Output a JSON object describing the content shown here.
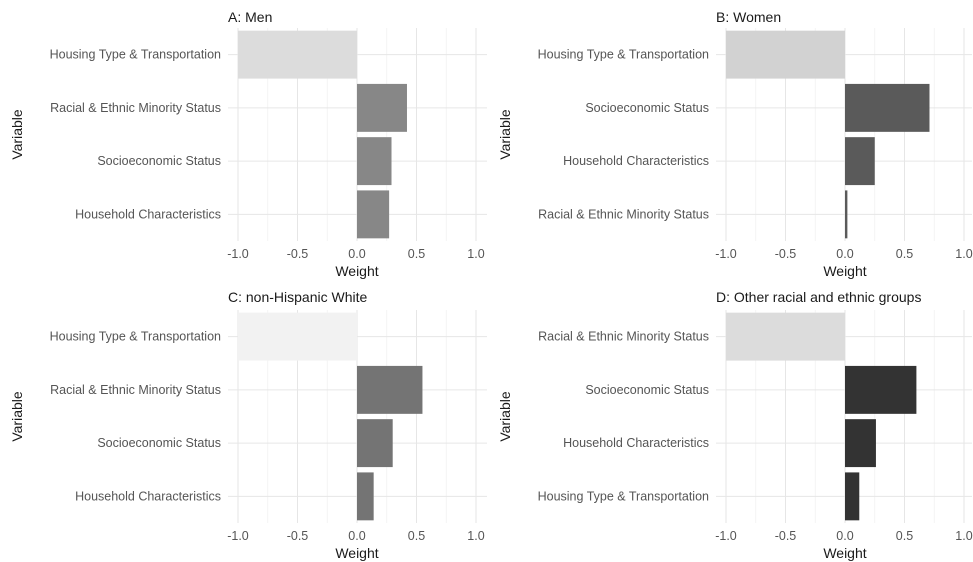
{
  "chart_data": [
    {
      "type": "bar",
      "orientation": "horizontal",
      "title": "A: Men",
      "xlabel": "Weight",
      "ylabel": "Variable",
      "xlim": [
        -1,
        1
      ],
      "xticks": [
        "-1.0",
        "-0.5",
        "0.0",
        "0.5",
        "1.0"
      ],
      "grid": true,
      "categories": [
        "Housing Type & Transportation",
        "Racial & Ethnic Minority Status",
        "Socioeconomic Status",
        "Household Characteristics"
      ],
      "values": [
        -1.0,
        0.42,
        0.29,
        0.27
      ],
      "colors": [
        "#dcdcdc",
        "#878787",
        "#878787",
        "#878787"
      ]
    },
    {
      "type": "bar",
      "orientation": "horizontal",
      "title": "B: Women",
      "xlabel": "Weight",
      "ylabel": "Variable",
      "xlim": [
        -1,
        1
      ],
      "xticks": [
        "-1.0",
        "-0.5",
        "0.0",
        "0.5",
        "1.0"
      ],
      "grid": true,
      "categories": [
        "Housing Type & Transportation",
        "Socioeconomic Status",
        "Household Characteristics",
        "Racial & Ethnic Minority Status"
      ],
      "values": [
        -1.0,
        0.71,
        0.25,
        0.02
      ],
      "colors": [
        "#d2d2d2",
        "#5a5a5a",
        "#5a5a5a",
        "#5a5a5a"
      ]
    },
    {
      "type": "bar",
      "orientation": "horizontal",
      "title": "C: non-Hispanic White",
      "xlabel": "Weight",
      "ylabel": "Variable",
      "xlim": [
        -1,
        1
      ],
      "xticks": [
        "-1.0",
        "-0.5",
        "0.0",
        "0.5",
        "1.0"
      ],
      "grid": true,
      "categories": [
        "Housing Type & Transportation",
        "Racial & Ethnic Minority Status",
        "Socioeconomic Status",
        "Household Characteristics"
      ],
      "values": [
        -1.0,
        0.55,
        0.3,
        0.14
      ],
      "colors": [
        "#f2f2f2",
        "#747474",
        "#747474",
        "#747474"
      ]
    },
    {
      "type": "bar",
      "orientation": "horizontal",
      "title": "D: Other racial and ethnic groups",
      "xlabel": "Weight",
      "ylabel": "Variable",
      "xlim": [
        -1,
        1
      ],
      "xticks": [
        "-1.0",
        "-0.5",
        "0.0",
        "0.5",
        "1.0"
      ],
      "grid": true,
      "categories": [
        "Racial & Ethnic Minority Status",
        "Socioeconomic Status",
        "Household Characteristics",
        "Housing Type & Transportation"
      ],
      "values": [
        -1.0,
        0.6,
        0.26,
        0.12
      ],
      "colors": [
        "#dcdcdc",
        "#333333",
        "#333333",
        "#333333"
      ]
    }
  ]
}
